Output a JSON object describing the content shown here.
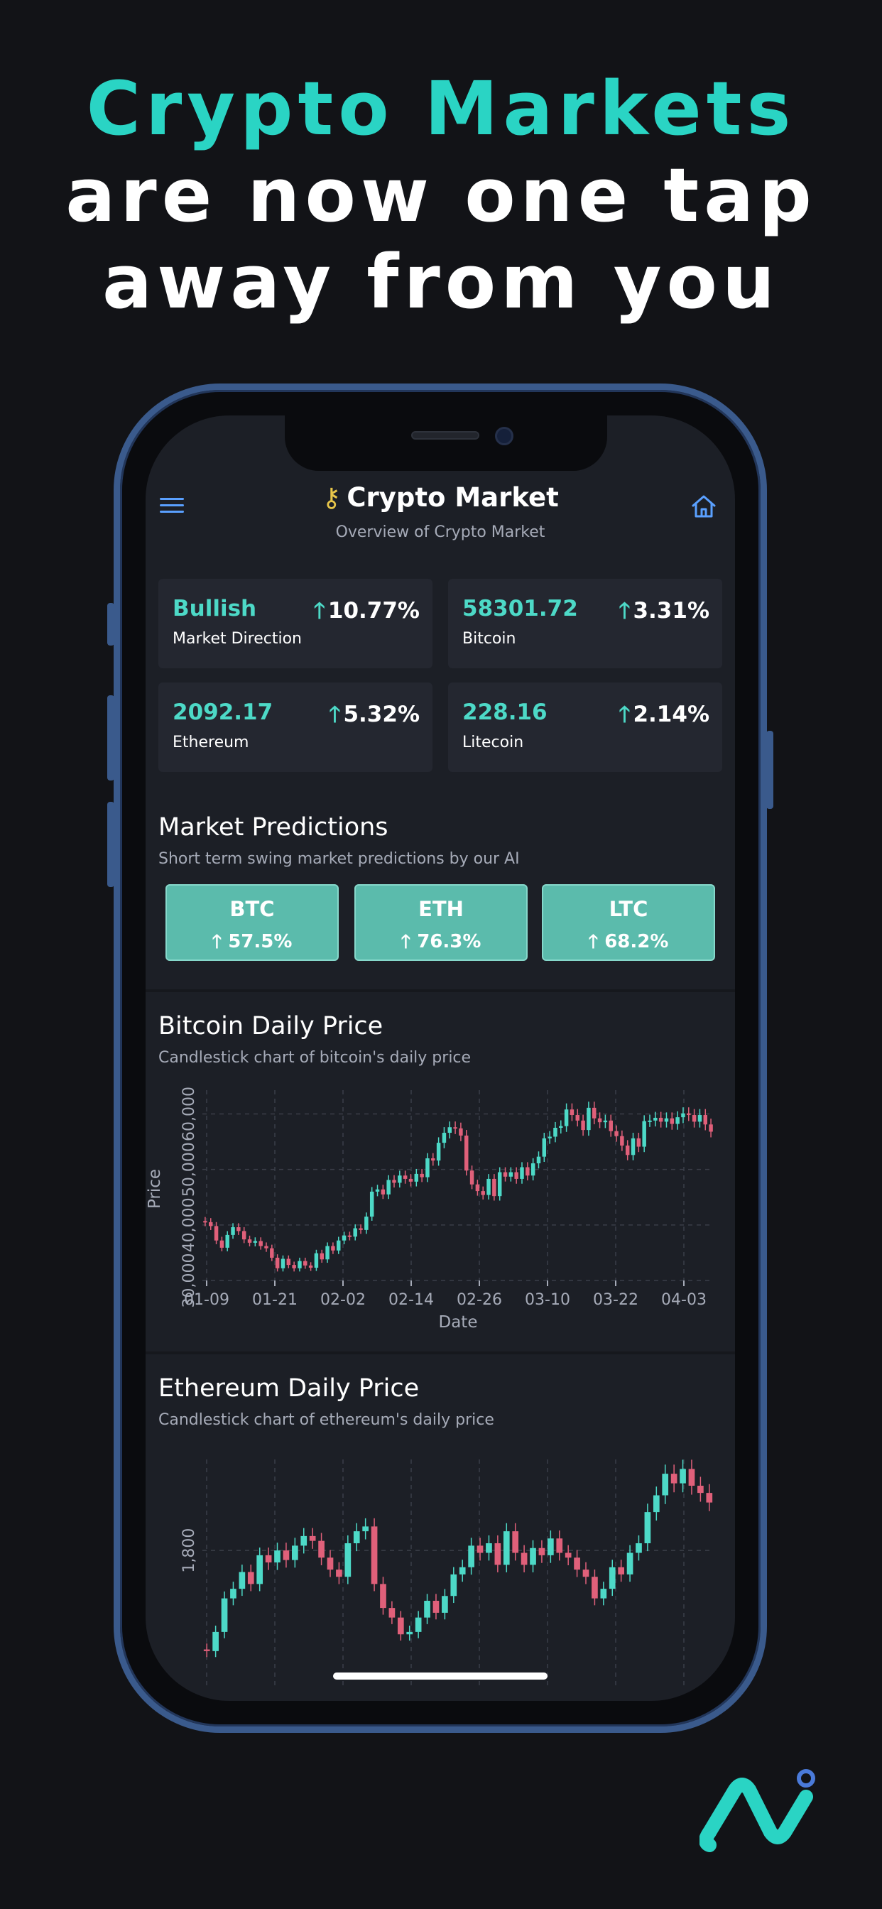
{
  "headline": {
    "line1": "Crypto Markets",
    "line2": "are now one tap",
    "line3": "away from you"
  },
  "app": {
    "title": "Crypto Market",
    "subtitle": "Overview of Crypto Market",
    "icons": {
      "menu": "hamburger-menu-icon",
      "home": "home-icon",
      "logo": "key-icon"
    }
  },
  "stats": [
    {
      "value": "Bullish",
      "label": "Market Direction",
      "change": "10.77%"
    },
    {
      "value": "58301.72",
      "label": "Bitcoin",
      "change": "3.31%"
    },
    {
      "value": "2092.17",
      "label": "Ethereum",
      "change": "5.32%"
    },
    {
      "value": "228.16",
      "label": "Litecoin",
      "change": "2.14%"
    }
  ],
  "predictions": {
    "title": "Market Predictions",
    "subtitle": "Short term swing market predictions by our AI",
    "items": [
      {
        "symbol": "BTC",
        "pct": "57.5%"
      },
      {
        "symbol": "ETH",
        "pct": "76.3%"
      },
      {
        "symbol": "LTC",
        "pct": "68.2%"
      }
    ]
  },
  "btc_chart": {
    "title": "Bitcoin Daily Price",
    "subtitle": "Candlestick chart of bitcoin's daily price"
  },
  "eth_chart": {
    "title": "Ethereum Daily Price",
    "subtitle": "Candlestick chart of ethereum's daily price"
  },
  "colors": {
    "up": "#4dd9c7",
    "down": "#e0607a",
    "accent": "#2ad4c4",
    "frame": "#3a5a8c"
  },
  "chart_data": [
    {
      "type": "candlestick",
      "title": "Bitcoin Daily Price",
      "xlabel": "Date",
      "ylabel": "Price",
      "x_ticks": [
        "01-09",
        "01-21",
        "02-02",
        "02-14",
        "02-26",
        "03-10",
        "03-22",
        "04-03"
      ],
      "y_ticks": [
        "30,000",
        "40,000",
        "50,000",
        "60,000"
      ],
      "ylim": [
        30000,
        63000
      ],
      "grid": true,
      "closes": [
        40500,
        39800,
        37200,
        35900,
        38200,
        39600,
        38900,
        37400,
        36800,
        37100,
        36200,
        35800,
        34100,
        32200,
        33900,
        32800,
        32200,
        33500,
        32700,
        32300,
        34900,
        33800,
        36200,
        35400,
        37200,
        38100,
        37900,
        39400,
        39100,
        41500,
        46000,
        46400,
        45500,
        48100,
        47600,
        48900,
        48300,
        47800,
        49200,
        48600,
        52000,
        51600,
        54800,
        56600,
        57600,
        57400,
        56100,
        49800,
        47300,
        46100,
        45400,
        48300,
        45200,
        49500,
        48700,
        49500,
        48300,
        50400,
        48900,
        51100,
        52300,
        55600,
        55900,
        57500,
        57800,
        60800,
        59800,
        58800,
        57100,
        61100,
        59200,
        58500,
        58800,
        56900,
        56000,
        54300,
        52600,
        55600,
        54100,
        58700,
        58800,
        59300,
        58600,
        59200,
        58200,
        59400,
        60100,
        59800,
        58600,
        59800,
        58100,
        56800
      ]
    },
    {
      "type": "candlestick",
      "title": "Ethereum Daily Price",
      "y_ticks": [
        "1,800"
      ],
      "grid": true,
      "closes": [
        1380,
        1460,
        1600,
        1640,
        1710,
        1660,
        1780,
        1750,
        1800,
        1760,
        1820,
        1860,
        1840,
        1770,
        1720,
        1690,
        1830,
        1880,
        1900,
        1660,
        1560,
        1520,
        1450,
        1460,
        1520,
        1590,
        1540,
        1610,
        1700,
        1730,
        1820,
        1790,
        1830,
        1740,
        1880,
        1790,
        1740,
        1810,
        1780,
        1850,
        1790,
        1770,
        1720,
        1690,
        1600,
        1640,
        1730,
        1700,
        1790,
        1830,
        1960,
        2030,
        2120,
        2080,
        2140,
        2070,
        2040,
        2000
      ]
    }
  ]
}
